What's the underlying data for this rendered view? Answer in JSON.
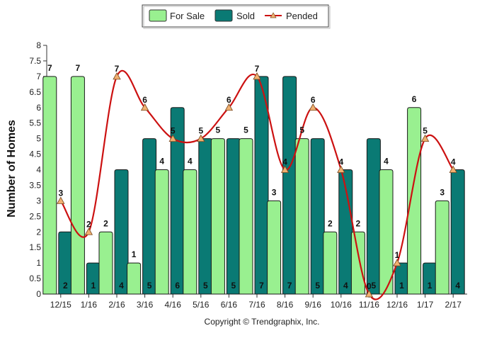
{
  "chart_data": {
    "type": "bar",
    "title": "",
    "xlabel": "",
    "ylabel": "Number of Homes",
    "ylim": [
      0,
      8
    ],
    "yticks": [
      "0",
      "0.5",
      "1",
      "1.5",
      "2",
      "2.5",
      "3",
      "3.5",
      "4",
      "4.5",
      "5",
      "5.5",
      "6",
      "6.5",
      "7",
      "7.5",
      "8"
    ],
    "categories": [
      "12/15",
      "1/16",
      "2/16",
      "3/16",
      "4/16",
      "5/16",
      "6/16",
      "7/16",
      "8/16",
      "9/16",
      "10/16",
      "11/16",
      "12/16",
      "1/17",
      "2/17"
    ],
    "series": [
      {
        "name": "For Sale",
        "type": "bar",
        "values": [
          7,
          7,
          2,
          1,
          4,
          4,
          5,
          5,
          3,
          5,
          2,
          2,
          4,
          6,
          3
        ]
      },
      {
        "name": "Sold",
        "type": "bar",
        "values": [
          2,
          1,
          4,
          5,
          6,
          5,
          5,
          7,
          7,
          5,
          4,
          5,
          1,
          1,
          4
        ]
      },
      {
        "name": "Pended",
        "type": "line",
        "values": [
          3,
          2,
          7,
          6,
          5,
          5,
          6,
          7,
          4,
          6,
          4,
          0,
          1,
          5,
          4
        ]
      }
    ],
    "legend_position": "top-center",
    "grid": false,
    "copyright": "Copyright © Trendgraphix, Inc."
  },
  "colors": {
    "for_sale_fill": "#99f090",
    "sold_fill": "#0a7a74",
    "pended_line": "#cc1111",
    "pended_marker": "#f0b070"
  }
}
